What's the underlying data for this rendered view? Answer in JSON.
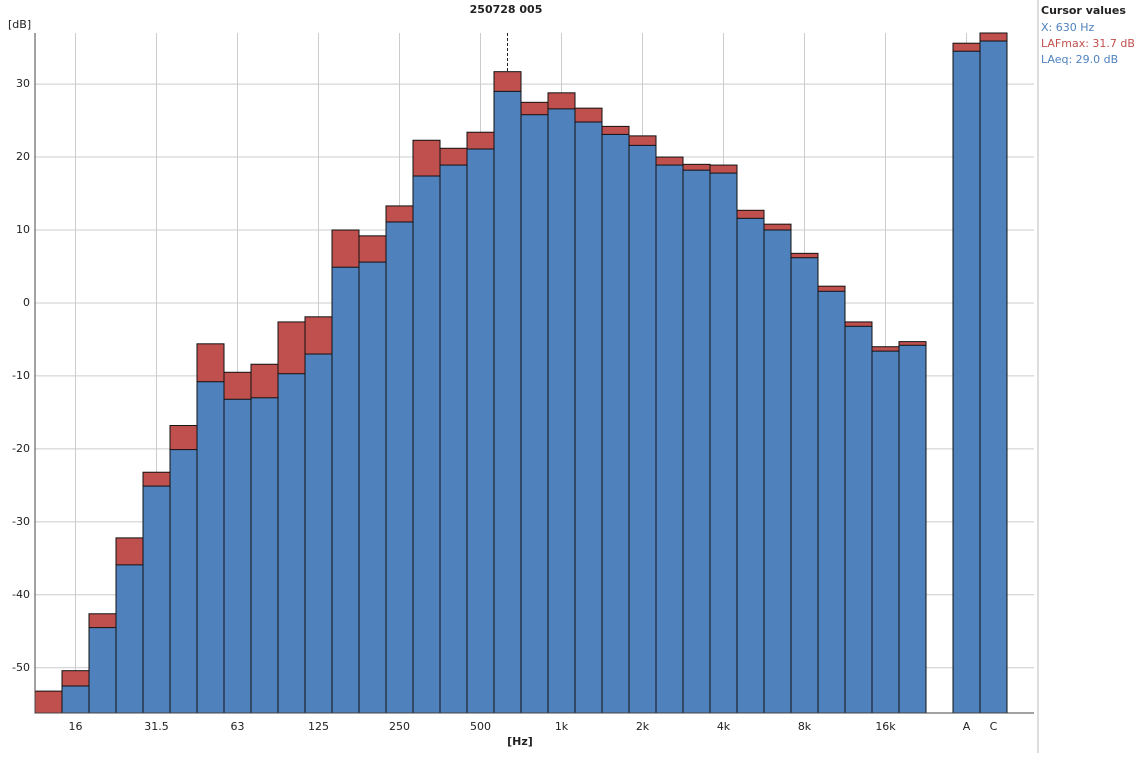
{
  "chart_data": {
    "type": "bar",
    "title": "250728 005",
    "y_label": "[dB]",
    "x_label": "[Hz]",
    "categories": [
      null,
      "16",
      null,
      null,
      "31.5",
      null,
      null,
      "63",
      null,
      null,
      "125",
      null,
      null,
      "250",
      null,
      null,
      "500",
      null,
      null,
      "1k",
      null,
      null,
      "2k",
      null,
      null,
      "4k",
      null,
      null,
      "8k",
      null,
      null,
      "16k",
      null,
      null,
      "A",
      "C",
      null
    ],
    "series": [
      {
        "color": "#c0504d",
        "values": [
          -53.2,
          -50.4,
          -42.6,
          -32.2,
          -23.2,
          -16.8,
          -5.6,
          -9.5,
          -8.4,
          -2.6,
          -1.9,
          10.0,
          9.2,
          13.3,
          22.3,
          21.2,
          23.4,
          31.7,
          27.5,
          28.8,
          26.7,
          24.2,
          22.9,
          20.0,
          19.0,
          18.9,
          12.7,
          10.8,
          6.8,
          2.3,
          -2.6,
          -6.0,
          -5.3,
          null,
          35.6,
          37.0,
          null
        ]
      },
      {
        "color": "#4f81bd",
        "values": [
          -57,
          -52.5,
          -44.5,
          -35.9,
          -25.1,
          -20.1,
          -10.8,
          -13.2,
          -13.0,
          -9.7,
          -7.0,
          4.9,
          5.6,
          11.1,
          17.4,
          18.9,
          21.1,
          29.0,
          25.8,
          26.6,
          24.8,
          23.1,
          21.6,
          18.9,
          18.2,
          17.8,
          11.6,
          10.0,
          6.2,
          1.6,
          -3.2,
          -6.6,
          -5.8,
          null,
          34.5,
          35.9,
          null
        ]
      }
    ],
    "ylim": [
      -56.2,
      37
    ],
    "yticks": [
      -50,
      -40,
      -30,
      -20,
      -10,
      0,
      10,
      20,
      30
    ],
    "grid": true,
    "cursor": {
      "title": "Cursor values",
      "x": "X: 630 Hz",
      "max": "LAFmax: 31.7 dB",
      "eq": "LAeq: 29.0 dB"
    }
  }
}
